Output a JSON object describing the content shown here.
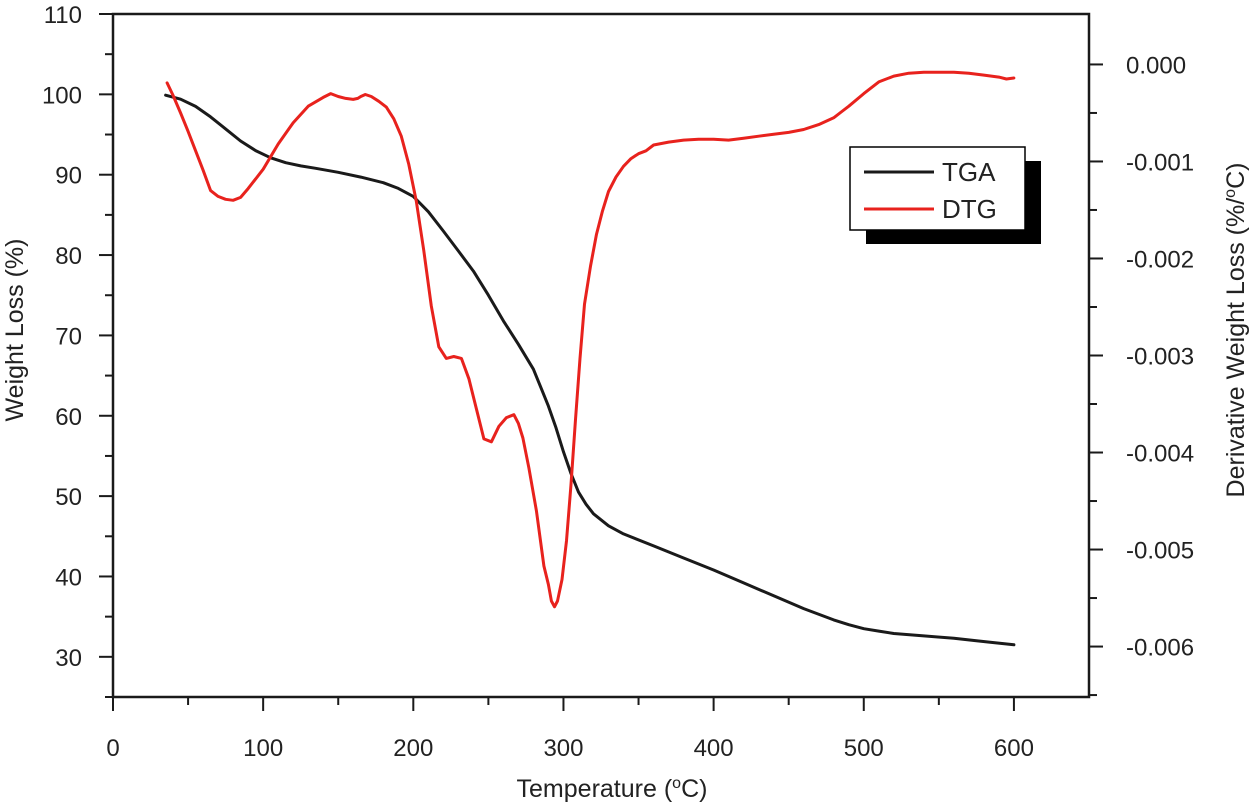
{
  "chart_data": {
    "type": "line",
    "title": "",
    "xlabel": "Temperature (",
    "xlabel_sup": "o",
    "xlabel_end": "C)",
    "ylabel": "Weight Loss (%)",
    "y2label": "Derivative Weight Loss (%/",
    "y2label_sup": "o",
    "y2label_end": "C)",
    "xlim": [
      0,
      650
    ],
    "ylim": [
      25,
      110
    ],
    "y2lim": [
      -0.00652,
      0.00052
    ],
    "x_ticks": [
      "0",
      "100",
      "200",
      "300",
      "400",
      "500",
      "600"
    ],
    "y_ticks": [
      "30",
      "40",
      "50",
      "60",
      "70",
      "80",
      "90",
      "100",
      "110"
    ],
    "y2_ticks": [
      "0.000",
      "-0.001",
      "-0.002",
      "-0.003",
      "-0.004",
      "-0.005",
      "-0.006"
    ],
    "legend": {
      "position": "top-right",
      "entries": [
        "TGA",
        "DTG"
      ]
    },
    "colors": {
      "TGA": "#1a1a1a",
      "DTG": "#e8221d",
      "axis": "#1a1a1a"
    },
    "series": [
      {
        "name": "TGA",
        "axis": "left",
        "x": [
          35,
          45,
          55,
          65,
          75,
          85,
          95,
          105,
          115,
          125,
          135,
          150,
          165,
          180,
          190,
          200,
          210,
          220,
          230,
          240,
          250,
          260,
          270,
          280,
          285,
          290,
          295,
          300,
          305,
          310,
          315,
          320,
          330,
          340,
          360,
          380,
          400,
          420,
          440,
          460,
          480,
          490,
          500,
          510,
          520,
          540,
          560,
          575,
          585,
          600
        ],
        "y": [
          99.9,
          99.4,
          98.5,
          97.2,
          95.7,
          94.2,
          93.0,
          92.1,
          91.5,
          91.1,
          90.8,
          90.3,
          89.7,
          89.0,
          88.3,
          87.3,
          85.4,
          83.0,
          80.5,
          78.0,
          75.0,
          71.8,
          68.9,
          65.8,
          63.5,
          61.2,
          58.5,
          55.5,
          52.8,
          50.5,
          49.0,
          47.8,
          46.3,
          45.3,
          43.8,
          42.3,
          40.8,
          39.2,
          37.6,
          36.0,
          34.6,
          34.0,
          33.5,
          33.2,
          32.9,
          32.6,
          32.3,
          32.0,
          31.8,
          31.5
        ]
      },
      {
        "name": "DTG",
        "axis": "right",
        "x": [
          36,
          40,
          45,
          50,
          55,
          60,
          65,
          70,
          75,
          80,
          85,
          90,
          100,
          110,
          120,
          130,
          140,
          145,
          150,
          155,
          160,
          163,
          165,
          168,
          172,
          177,
          182,
          187,
          192,
          197,
          202,
          207,
          212,
          217,
          222,
          227,
          232,
          237,
          242,
          247,
          252,
          257,
          262,
          267,
          270,
          273,
          277,
          282,
          287,
          290,
          292,
          294,
          296,
          299,
          302,
          305,
          308,
          311,
          314,
          318,
          322,
          326,
          330,
          335,
          340,
          345,
          350,
          355,
          360,
          370,
          380,
          390,
          400,
          410,
          420,
          430,
          440,
          450,
          460,
          470,
          480,
          485,
          490,
          500,
          510,
          520,
          530,
          540,
          550,
          560,
          570,
          580,
          590,
          595,
          600
        ],
        "y": [
          -0.00019,
          -0.00032,
          -0.0005,
          -0.00069,
          -0.00089,
          -0.00109,
          -0.0013,
          -0.00136,
          -0.00139,
          -0.0014,
          -0.00137,
          -0.00128,
          -0.00108,
          -0.00082,
          -0.0006,
          -0.00043,
          -0.00034,
          -0.0003,
          -0.00033,
          -0.00035,
          -0.00036,
          -0.00035,
          -0.00033,
          -0.00031,
          -0.00033,
          -0.00038,
          -0.00044,
          -0.00056,
          -0.00074,
          -0.00103,
          -0.00141,
          -0.00192,
          -0.00249,
          -0.00291,
          -0.00303,
          -0.00301,
          -0.00303,
          -0.00324,
          -0.00355,
          -0.00386,
          -0.00389,
          -0.00373,
          -0.00364,
          -0.00361,
          -0.0037,
          -0.00385,
          -0.00416,
          -0.0046,
          -0.00517,
          -0.00536,
          -0.00553,
          -0.00559,
          -0.00553,
          -0.00531,
          -0.00491,
          -0.00433,
          -0.00366,
          -0.00303,
          -0.00247,
          -0.00208,
          -0.00175,
          -0.00151,
          -0.00131,
          -0.00116,
          -0.00105,
          -0.00097,
          -0.00092,
          -0.00089,
          -0.00083,
          -0.0008,
          -0.00078,
          -0.00077,
          -0.00077,
          -0.00078,
          -0.00076,
          -0.00074,
          -0.00072,
          -0.0007,
          -0.00067,
          -0.00062,
          -0.00055,
          -0.00049,
          -0.00043,
          -0.0003,
          -0.00018,
          -0.00012,
          -9e-05,
          -8e-05,
          -8e-05,
          -8e-05,
          -9e-05,
          -0.00011,
          -0.00013,
          -0.00015,
          -0.00014
        ]
      }
    ]
  }
}
